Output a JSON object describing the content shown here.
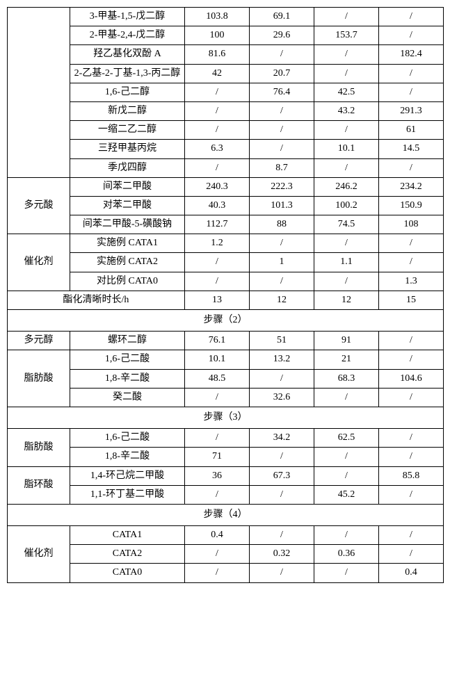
{
  "top_group": {
    "rows": [
      {
        "name": "3-甲基-1,5-戊二醇",
        "v": [
          "103.8",
          "69.1",
          "/",
          "/"
        ]
      },
      {
        "name": "2-甲基-2,4-戊二醇",
        "v": [
          "100",
          "29.6",
          "153.7",
          "/"
        ]
      },
      {
        "name": "羟乙基化双酚 A",
        "v": [
          "81.6",
          "/",
          "/",
          "182.4"
        ]
      },
      {
        "name": "2-乙基-2-丁基-1,3-丙二醇",
        "v": [
          "42",
          "20.7",
          "/",
          "/"
        ]
      },
      {
        "name": "1,6-己二醇",
        "v": [
          "/",
          "76.4",
          "42.5",
          "/"
        ]
      },
      {
        "name": "新戊二醇",
        "v": [
          "/",
          "/",
          "43.2",
          "291.3"
        ]
      },
      {
        "name": "一缩二乙二醇",
        "v": [
          "/",
          "/",
          "/",
          "61"
        ]
      },
      {
        "name": "三羟甲基丙烷",
        "v": [
          "6.3",
          "/",
          "10.1",
          "14.5"
        ]
      },
      {
        "name": "季戊四醇",
        "v": [
          "/",
          "8.7",
          "/",
          "/"
        ]
      }
    ]
  },
  "polyacid": {
    "label": "多元酸",
    "rows": [
      {
        "name": "间苯二甲酸",
        "v": [
          "240.3",
          "222.3",
          "246.2",
          "234.2"
        ]
      },
      {
        "name": "对苯二甲酸",
        "v": [
          "40.3",
          "101.3",
          "100.2",
          "150.9"
        ]
      },
      {
        "name": "间苯二甲酸-5-磺酸钠",
        "v": [
          "112.7",
          "88",
          "74.5",
          "108"
        ]
      }
    ]
  },
  "catalyst1": {
    "label": "催化剂",
    "rows": [
      {
        "name": "实施例 CATA1",
        "v": [
          "1.2",
          "/",
          "/",
          "/"
        ]
      },
      {
        "name": "实施例 CATA2",
        "v": [
          "/",
          "1",
          "1.1",
          "/"
        ]
      },
      {
        "name": "对比例 CATA0",
        "v": [
          "/",
          "/",
          "/",
          "1.3"
        ]
      }
    ]
  },
  "ester_time": {
    "label": "酯化清晰时长/h",
    "v": [
      "13",
      "12",
      "12",
      "15"
    ]
  },
  "step2": {
    "header": "步骤（2）",
    "polyol": {
      "label": "多元醇",
      "rows": [
        {
          "name": "螺环二醇",
          "v": [
            "76.1",
            "51",
            "91",
            "/"
          ]
        }
      ]
    },
    "fatty": {
      "label": "脂肪酸",
      "rows": [
        {
          "name": "1,6-己二酸",
          "v": [
            "10.1",
            "13.2",
            "21",
            "/"
          ]
        },
        {
          "name": "1,8-辛二酸",
          "v": [
            "48.5",
            "/",
            "68.3",
            "104.6"
          ]
        },
        {
          "name": "癸二酸",
          "v": [
            "/",
            "32.6",
            "/",
            "/"
          ]
        }
      ]
    }
  },
  "step3": {
    "header": "步骤（3）",
    "fatty": {
      "label": "脂肪酸",
      "rows": [
        {
          "name": "1,6-己二酸",
          "v": [
            "/",
            "34.2",
            "62.5",
            "/"
          ]
        },
        {
          "name": "1,8-辛二酸",
          "v": [
            "71",
            "/",
            "/",
            "/"
          ]
        }
      ]
    },
    "alicyclic": {
      "label": "脂环酸",
      "rows": [
        {
          "name": "1,4-环己烷二甲酸",
          "v": [
            "36",
            "67.3",
            "/",
            "85.8"
          ]
        },
        {
          "name": "1,1-环丁基二甲酸",
          "v": [
            "/",
            "/",
            "45.2",
            "/"
          ]
        }
      ]
    }
  },
  "step4": {
    "header": "步骤（4）",
    "catalyst": {
      "label": "催化剂",
      "rows": [
        {
          "name": "CATA1",
          "v": [
            "0.4",
            "/",
            "/",
            "/"
          ]
        },
        {
          "name": "CATA2",
          "v": [
            "/",
            "0.32",
            "0.36",
            "/"
          ]
        },
        {
          "name": "CATA0",
          "v": [
            "/",
            "/",
            "/",
            "0.4"
          ]
        }
      ]
    }
  },
  "colors": {
    "border": "#000000",
    "background": "#ffffff",
    "text": "#000000"
  },
  "fontsize": 14
}
